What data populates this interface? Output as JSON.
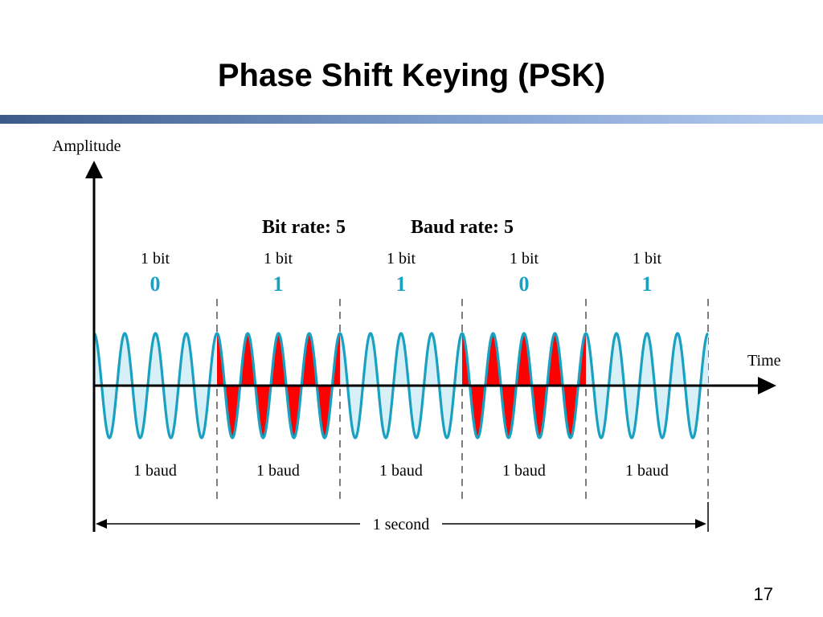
{
  "slide": {
    "title": "Phase Shift Keying (PSK)",
    "page_number": "17"
  },
  "colors": {
    "wave": "#1aa0c0",
    "wave_fill_light": "#d7f0f8",
    "phase_shift_fill": "#ff0000",
    "bit_value": "#1aa0c0",
    "title_bar_start": "#3b5a8c",
    "title_bar_end": "#b7cdef"
  },
  "diagram": {
    "y_axis_label": "Amplitude",
    "x_axis_label": "Time",
    "rates": {
      "bit_rate": "Bit rate: 5",
      "baud_rate": "Baud rate: 5"
    },
    "bits": [
      {
        "unit_label": "1 bit",
        "value": "0",
        "baud_label": "1 baud"
      },
      {
        "unit_label": "1 bit",
        "value": "1",
        "baud_label": "1 baud"
      },
      {
        "unit_label": "1 bit",
        "value": "1",
        "baud_label": "1 baud"
      },
      {
        "unit_label": "1 bit",
        "value": "0",
        "baud_label": "1 baud"
      },
      {
        "unit_label": "1 bit",
        "value": "1",
        "baud_label": "1 baud"
      }
    ],
    "cycles_per_bit": 4,
    "phase_shift_pattern": [
      false,
      true,
      false,
      true,
      false
    ],
    "duration_label": "1 second"
  }
}
